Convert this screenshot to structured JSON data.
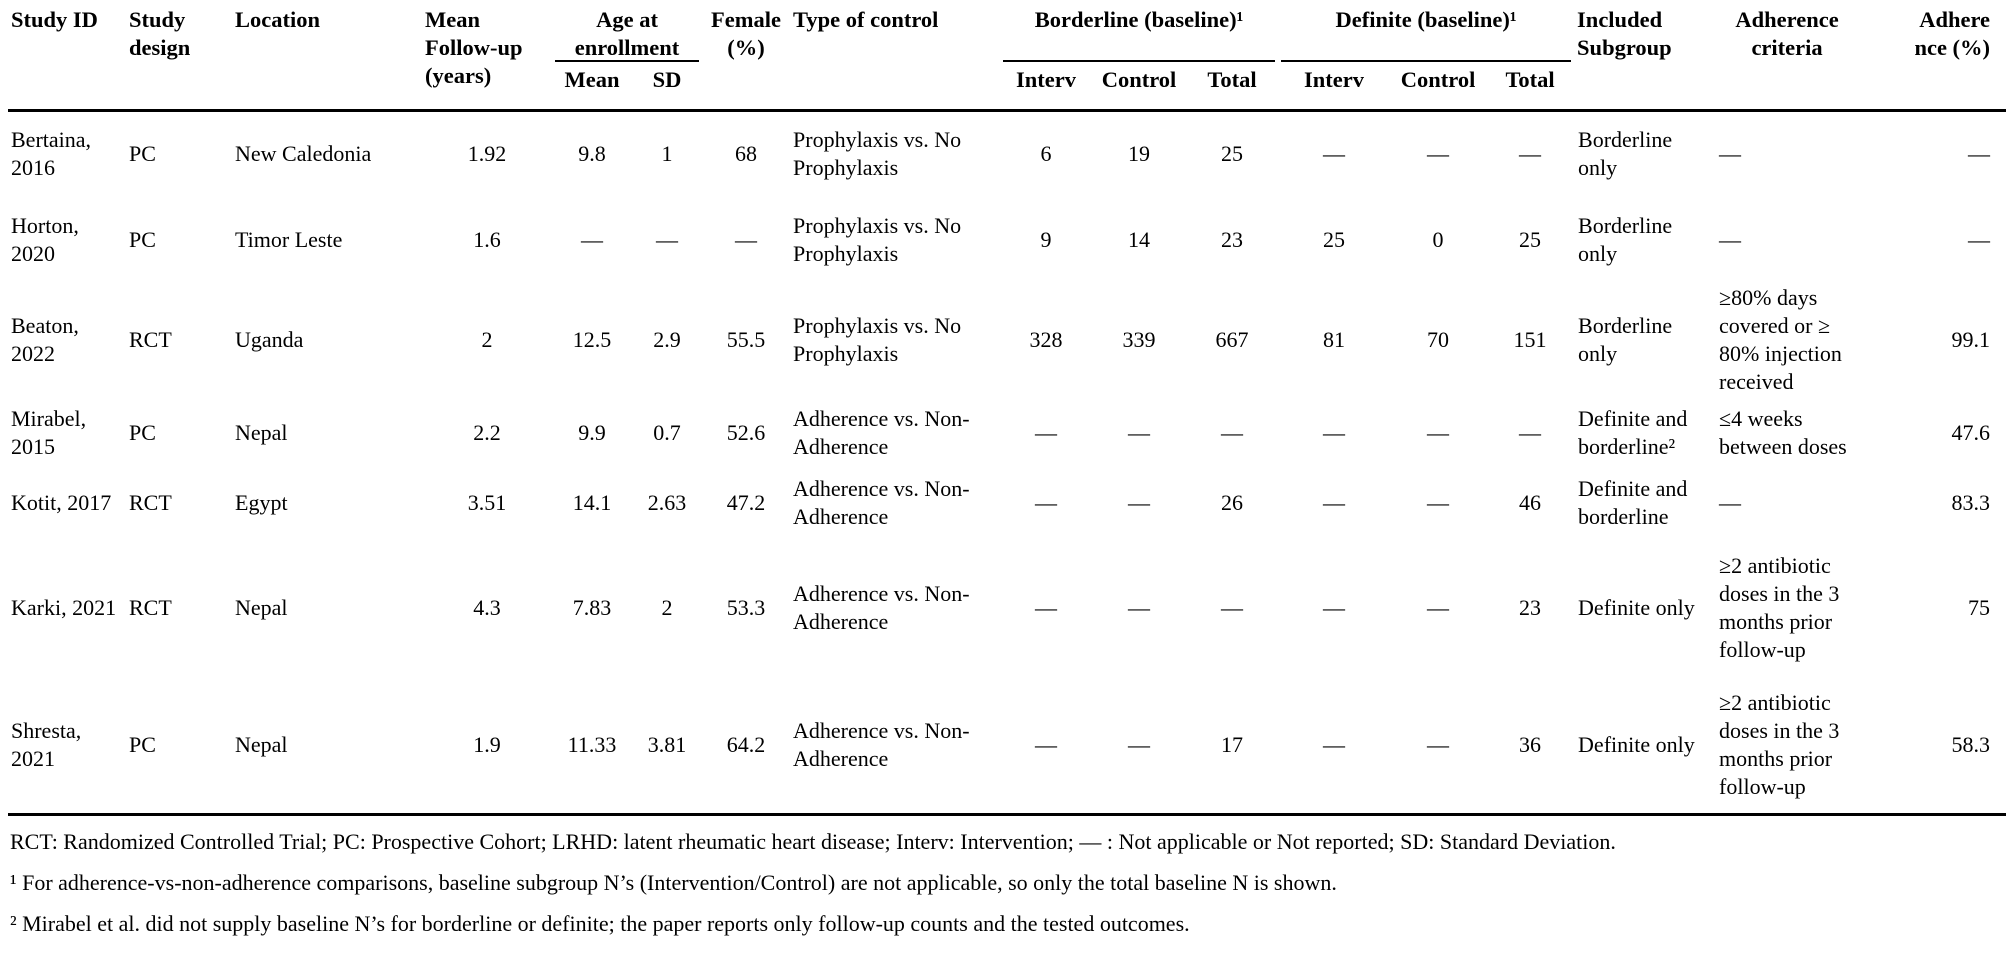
{
  "table": {
    "header": {
      "study_id": "Study ID",
      "study_design": "Study design",
      "location": "Location",
      "mean_follow_up": "Mean Follow-up (years)",
      "age_at_enrollment": "Age at enrollment",
      "age_mean": "Mean",
      "age_sd": "SD",
      "female_pct": "Female (%)",
      "type_of_control": "Type of control",
      "borderline_baseline": "Borderline (baseline)¹",
      "definite_baseline": "Definite (baseline)¹",
      "interv": "Interv",
      "control": "Control",
      "total": "Total",
      "included_subgroup": "Included Subgroup",
      "adherence_criteria": "Adherence criteria",
      "adherence_pct_l1": "Adhere",
      "adherence_pct_l2": "nce (%)"
    },
    "rows": [
      {
        "cells": [
          "Bertaina, 2016",
          "PC",
          "New Caledonia",
          "1.92",
          "9.8",
          "1",
          "68",
          "Prophylaxis vs. No Prophylaxis",
          "6",
          "19",
          "25",
          "—",
          "—",
          "—",
          "Borderline only",
          "—",
          "—"
        ]
      },
      {
        "cells": [
          "Horton, 2020",
          "PC",
          "Timor Leste",
          "1.6",
          "—",
          "—",
          "—",
          "Prophylaxis vs. No Prophylaxis",
          "9",
          "14",
          "23",
          "25",
          "0",
          "25",
          "Borderline only",
          "—",
          "—"
        ]
      },
      {
        "cells": [
          "Beaton, 2022",
          "RCT",
          "Uganda",
          "2",
          "12.5",
          "2.9",
          "55.5",
          "Prophylaxis vs. No Prophylaxis",
          "328",
          "339",
          "667",
          "81",
          "70",
          "151",
          "Borderline only",
          "≥80% days covered or ≥ 80% injection received",
          "99.1"
        ]
      },
      {
        "cells": [
          "Mirabel, 2015",
          "PC",
          "Nepal",
          "2.2",
          "9.9",
          "0.7",
          "52.6",
          "Adherence vs. Non-Adherence",
          "—",
          "—",
          "—",
          "—",
          "—",
          "—",
          "Definite and borderline²",
          "≤4 weeks between doses",
          "47.6"
        ]
      },
      {
        "cells": [
          "Kotit, 2017",
          "RCT",
          "Egypt",
          "3.51",
          "14.1",
          "2.63",
          "47.2",
          "Adherence vs. Non-Adherence",
          "—",
          "—",
          "26",
          "—",
          "—",
          "46",
          "Definite and borderline",
          "—",
          "83.3"
        ]
      },
      {
        "cells": [
          "Karki, 2021",
          "RCT",
          "Nepal",
          "4.3",
          "7.83",
          "2",
          "53.3",
          "Adherence vs. Non-Adherence",
          "—",
          "—",
          "—",
          "—",
          "—",
          "23",
          "Definite only",
          "≥2 antibiotic doses in the 3 months prior follow-up",
          "75"
        ]
      },
      {
        "cells": [
          "Shresta, 2021",
          "PC",
          "Nepal",
          "1.9",
          "11.33",
          "3.81",
          "64.2",
          "Adherence vs. Non-Adherence",
          "—",
          "—",
          "17",
          "—",
          "—",
          "36",
          "Definite only",
          "≥2 antibiotic doses in the 3 months prior follow-up",
          "58.3"
        ]
      }
    ],
    "footnotes": [
      "RCT: Randomized Controlled Trial; PC: Prospective Cohort; LRHD: latent rheumatic heart disease; Interv: Intervention; — : Not applicable or Not reported; SD: Standard Deviation.",
      "¹ For adherence-vs-non-adherence comparisons, baseline subgroup N’s (Intervention/Control) are not applicable, so only the total baseline N is shown.",
      "² Mirabel et al. did not supply baseline N’s for borderline or definite; the paper reports only follow-up counts and the tested outcomes."
    ]
  }
}
